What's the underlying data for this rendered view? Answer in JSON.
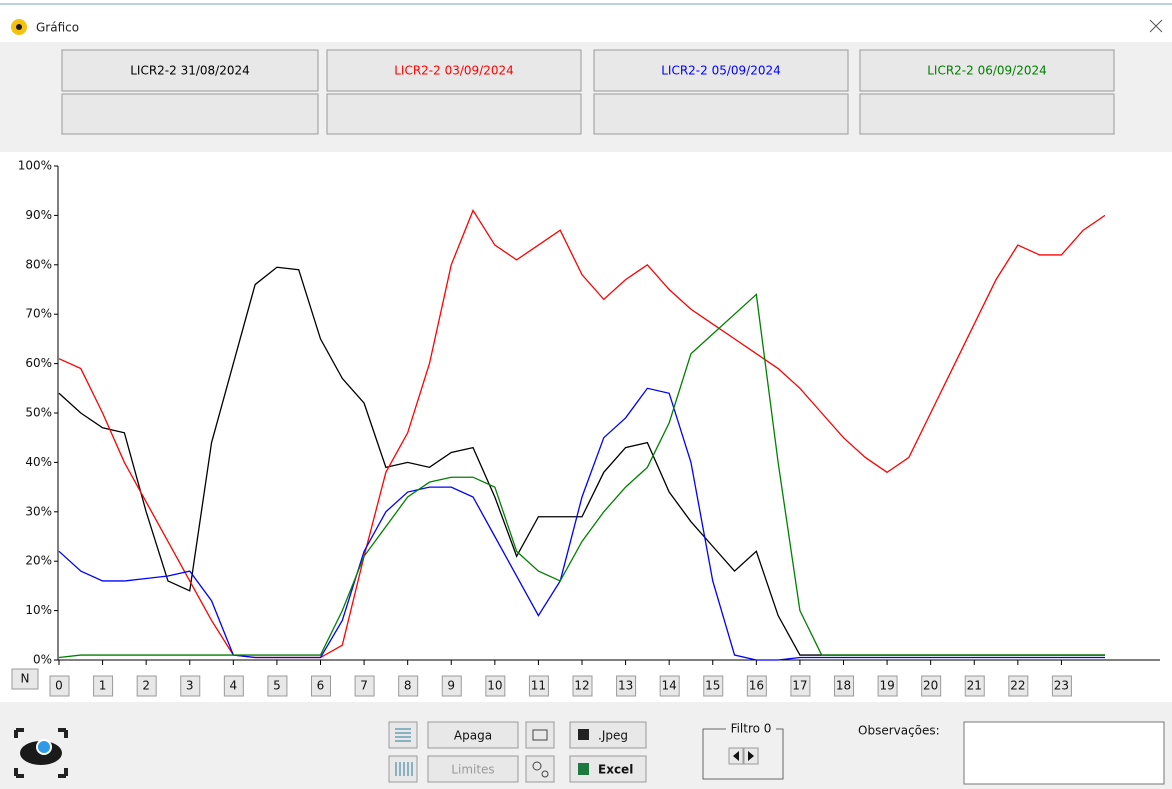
{
  "window": {
    "title": "Gráfico"
  },
  "chart_data": {
    "type": "line",
    "x": [
      0,
      0.5,
      1,
      1.5,
      2,
      2.5,
      3,
      3.5,
      4,
      4.5,
      5,
      5.5,
      6,
      6.5,
      7,
      7.5,
      8,
      8.5,
      9,
      9.5,
      10,
      10.5,
      11,
      11.5,
      12,
      12.5,
      13,
      13.5,
      14,
      14.5,
      15,
      15.5,
      16,
      16.5,
      17,
      17.5,
      18,
      18.5,
      19,
      19.5,
      20,
      20.5,
      21,
      21.5,
      22,
      22.5,
      23,
      23.5,
      24
    ],
    "xlim": [
      0,
      24
    ],
    "xticks": [
      0,
      1,
      2,
      3,
      4,
      5,
      6,
      7,
      8,
      9,
      10,
      11,
      12,
      13,
      14,
      15,
      16,
      17,
      18,
      19,
      20,
      21,
      22,
      23
    ],
    "ylim": [
      0,
      100
    ],
    "yticks": [
      {
        "value": 0,
        "label": "0%"
      },
      {
        "value": 10,
        "label": "10%"
      },
      {
        "value": 20,
        "label": "20%"
      },
      {
        "value": 30,
        "label": "30%"
      },
      {
        "value": 40,
        "label": "40%"
      },
      {
        "value": 50,
        "label": "50%"
      },
      {
        "value": 60,
        "label": "60%"
      },
      {
        "value": 70,
        "label": "70%"
      },
      {
        "value": 80,
        "label": "80%"
      },
      {
        "value": 90,
        "label": "90%"
      },
      {
        "value": 100,
        "label": "100%"
      }
    ],
    "series": [
      {
        "name": "LICR2-2 31/08/2024",
        "color": "#000000",
        "values": [
          54,
          50,
          47,
          46,
          30,
          16,
          14,
          44,
          60,
          76,
          79.5,
          79,
          65,
          57,
          52,
          39,
          40,
          39,
          42,
          43,
          33,
          21,
          29,
          29,
          29,
          38,
          43,
          44,
          34,
          28,
          23,
          18,
          22,
          9,
          1,
          1,
          1,
          1,
          1,
          1,
          1,
          1,
          1,
          1,
          1,
          1,
          1,
          1,
          1
        ]
      },
      {
        "name": "LICR2-2 03/09/2024",
        "color": "#ff0000",
        "values": [
          61,
          59,
          50,
          40,
          32,
          24,
          16,
          8,
          1,
          0.5,
          0.5,
          0.5,
          0.5,
          3,
          21,
          38,
          46,
          60,
          80,
          91,
          84,
          81,
          84,
          87,
          78,
          73,
          77,
          80,
          75,
          71,
          68,
          65,
          62,
          59,
          55,
          50,
          45,
          41,
          38,
          41,
          50,
          59,
          68,
          77,
          84,
          82,
          82,
          87,
          90
        ]
      },
      {
        "name": "LICR2-2 05/09/2024",
        "color": "#0000ff",
        "values": [
          22,
          18,
          16,
          16,
          16.5,
          17,
          18,
          12,
          1,
          0.5,
          0.5,
          0.5,
          0.5,
          8,
          22,
          30,
          34,
          35,
          35,
          33,
          25,
          17,
          9,
          16,
          33,
          45,
          49,
          55,
          54,
          40,
          16,
          1,
          0,
          0,
          0.5,
          0.5,
          0.5,
          0.5,
          0.5,
          0.5,
          0.5,
          0.5,
          0.5,
          0.5,
          0.5,
          0.5,
          0.5,
          0.5,
          0.5
        ]
      },
      {
        "name": "LICR2-2 06/09/2024",
        "color": "#008000",
        "values": [
          0.5,
          1,
          1,
          1,
          1,
          1,
          1,
          1,
          1,
          1,
          1,
          1,
          1,
          10,
          21,
          27,
          33,
          36,
          37,
          37,
          35,
          22,
          18,
          16,
          24,
          30,
          35,
          39,
          48,
          62,
          66,
          70,
          74,
          40,
          10,
          1,
          1,
          1,
          1,
          1,
          1,
          1,
          1,
          1,
          1,
          1,
          1,
          1,
          1
        ]
      }
    ]
  },
  "toolbar": {
    "n_button": "N",
    "apaga": "Apaga",
    "limites": "Limites",
    "jpeg": ".Jpeg",
    "excel": "Excel",
    "filtro": "Filtro 0",
    "observacoes": "Observações:"
  }
}
